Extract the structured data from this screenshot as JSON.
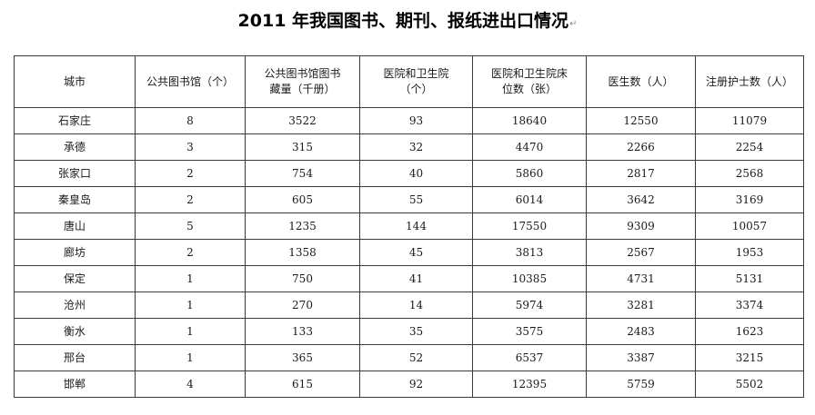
{
  "title": "2011 年我国图书、期刊、报纸进出口情况",
  "title_mark": "↵",
  "table": {
    "headers": [
      [
        "城市"
      ],
      [
        "公共图书馆（个）"
      ],
      [
        "公共图书馆图书",
        "藏量（千册）"
      ],
      [
        "医院和卫生院",
        "（个）"
      ],
      [
        "医院和卫生院床",
        "位数（张）"
      ],
      [
        "医生数（人）"
      ],
      [
        "注册护士数（人）"
      ]
    ],
    "rows": [
      [
        "石家庄",
        "8",
        "3522",
        "93",
        "18640",
        "12550",
        "11079"
      ],
      [
        "承德",
        "3",
        "315",
        "32",
        "4470",
        "2266",
        "2254"
      ],
      [
        "张家口",
        "2",
        "754",
        "40",
        "5860",
        "2817",
        "2568"
      ],
      [
        "秦皇岛",
        "2",
        "605",
        "55",
        "6014",
        "3642",
        "3169"
      ],
      [
        "唐山",
        "5",
        "1235",
        "144",
        "17550",
        "9309",
        "10057"
      ],
      [
        "廊坊",
        "2",
        "1358",
        "45",
        "3813",
        "2567",
        "1953"
      ],
      [
        "保定",
        "1",
        "750",
        "41",
        "10385",
        "4731",
        "5131"
      ],
      [
        "沧州",
        "1",
        "270",
        "14",
        "5974",
        "3281",
        "3374"
      ],
      [
        "衡水",
        "1",
        "133",
        "35",
        "3575",
        "2483",
        "1623"
      ],
      [
        "邢台",
        "1",
        "365",
        "52",
        "6537",
        "3387",
        "3215"
      ],
      [
        "邯郸",
        "4",
        "615",
        "92",
        "12395",
        "5759",
        "5502"
      ]
    ]
  }
}
